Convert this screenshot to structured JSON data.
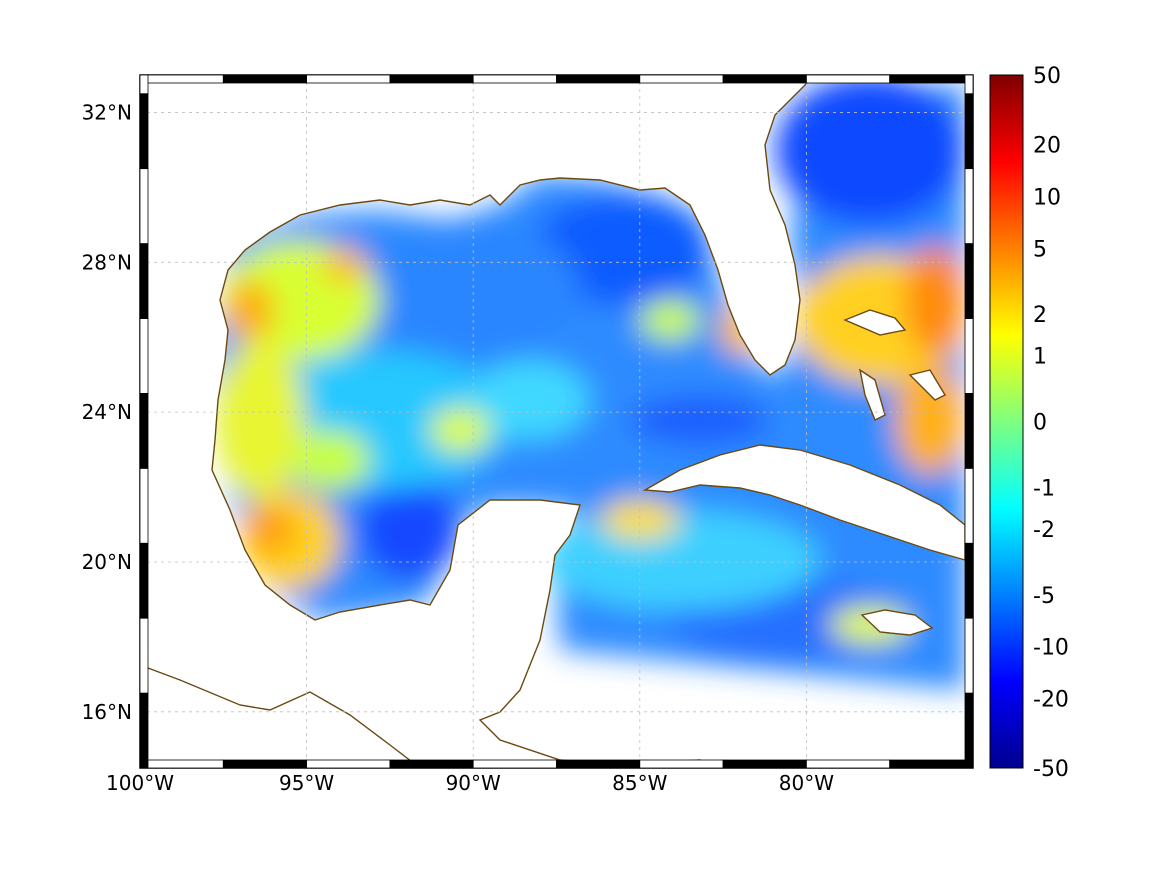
{
  "map": {
    "region": "Gulf of Mexico and Caribbean",
    "lon_range": [
      -100,
      -75
    ],
    "lat_range": [
      14.5,
      33
    ],
    "grid": true,
    "coastline_color": "#6b4a12",
    "land_color": "#ffffff",
    "x_ticks": [
      {
        "lon": -100,
        "label": "100°W"
      },
      {
        "lon": -95,
        "label": "95°W"
      },
      {
        "lon": -90,
        "label": "90°W"
      },
      {
        "lon": -85,
        "label": "85°W"
      },
      {
        "lon": -80,
        "label": "80°W"
      }
    ],
    "y_ticks": [
      {
        "lat": 32,
        "label": "32°N"
      },
      {
        "lat": 28,
        "label": "28°N"
      },
      {
        "lat": 24,
        "label": "24°N"
      },
      {
        "lat": 20,
        "label": "20°N"
      },
      {
        "lat": 16,
        "label": "16°N"
      }
    ]
  },
  "colorbar": {
    "colormap": "jet",
    "ticks": [
      "50",
      "20",
      "10",
      "5",
      "2",
      "1",
      "0",
      "-1",
      "-2",
      "-5",
      "-10",
      "-20",
      "-50"
    ]
  }
}
